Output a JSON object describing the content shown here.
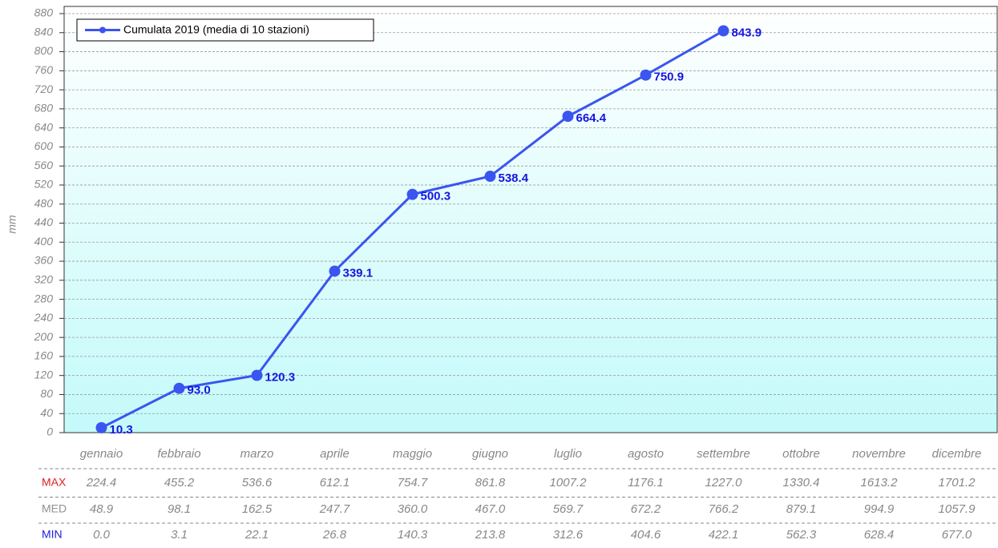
{
  "chart_data": {
    "type": "line",
    "ylabel": "mm",
    "categories": [
      "gennaio",
      "febbraio",
      "marzo",
      "aprile",
      "maggio",
      "giugno",
      "luglio",
      "agosto",
      "settembre",
      "ottobre",
      "novembre",
      "dicembre"
    ],
    "series": [
      {
        "name": "Cumulata 2019 (media di 10 stazioni)",
        "color": "#3a55f0",
        "values": [
          10.3,
          93.0,
          120.3,
          339.1,
          500.3,
          538.4,
          664.4,
          750.9,
          843.9,
          null,
          null,
          null
        ],
        "value_labels": [
          "10.3",
          "93.0",
          "120.3",
          "339.1",
          "500.3",
          "538.4",
          "664.4",
          "750.9",
          "843.9",
          null,
          null,
          null
        ]
      }
    ],
    "ylim": [
      0,
      880
    ],
    "yticks": [
      0,
      40,
      80,
      120,
      160,
      200,
      240,
      280,
      320,
      360,
      400,
      440,
      480,
      520,
      560,
      600,
      640,
      680,
      720,
      760,
      800,
      840,
      880
    ],
    "grid": true,
    "legend": "upper left",
    "table": {
      "rows": [
        {
          "label": "MAX",
          "color": "#e02020",
          "values": [
            "224.4",
            "455.2",
            "536.6",
            "612.1",
            "754.7",
            "861.8",
            "1007.2",
            "1176.1",
            "1227.0",
            "1330.4",
            "1613.2",
            "1701.2"
          ]
        },
        {
          "label": "MED",
          "color": "#909090",
          "values": [
            "48.9",
            "98.1",
            "162.5",
            "247.7",
            "360.0",
            "467.0",
            "569.7",
            "672.2",
            "766.2",
            "879.1",
            "994.9",
            "1057.9"
          ]
        },
        {
          "label": "MIN",
          "color": "#2020e0",
          "values": [
            "0.0",
            "3.1",
            "22.1",
            "26.8",
            "140.3",
            "213.8",
            "312.6",
            "404.6",
            "422.1",
            "562.3",
            "628.4",
            "677.0"
          ]
        }
      ]
    }
  }
}
